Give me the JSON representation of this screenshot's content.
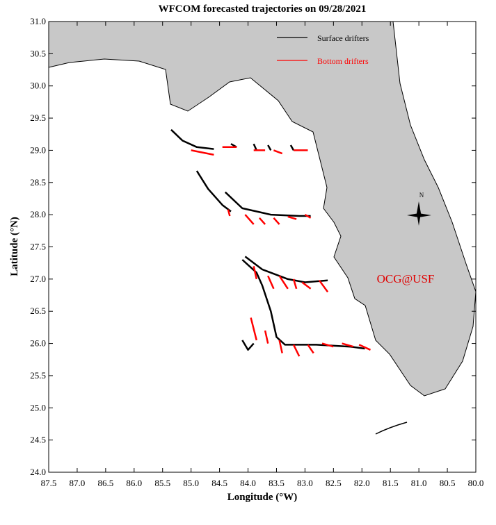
{
  "chart_data": {
    "type": "line",
    "title": "WFCOM forecasted trajectories on 09/28/2021",
    "x_label": "Longitude (°W)",
    "y_label": "Latitude (°N)",
    "annotation": "OCG@USF",
    "annotation_color": "#e00000",
    "compass_label": "N",
    "xlim": [
      87.5,
      80.0
    ],
    "ylim": [
      24.0,
      31.0
    ],
    "xticks": [
      {
        "value": 87.5,
        "label": "87.5"
      },
      {
        "value": 87,
        "label": "87.0"
      },
      {
        "value": 86.5,
        "label": "86.5"
      },
      {
        "value": 86,
        "label": "86.0"
      },
      {
        "value": 85.5,
        "label": "85.5"
      },
      {
        "value": 85,
        "label": "85.0"
      },
      {
        "value": 84.5,
        "label": "84.5"
      },
      {
        "value": 84,
        "label": "84.0"
      },
      {
        "value": 83.5,
        "label": "83.5"
      },
      {
        "value": 83,
        "label": "83.0"
      },
      {
        "value": 82.5,
        "label": "82.5"
      },
      {
        "value": 82,
        "label": "82.0"
      },
      {
        "value": 81.5,
        "label": "81.5"
      },
      {
        "value": 81,
        "label": "81.0"
      },
      {
        "value": 80.5,
        "label": "80.5"
      },
      {
        "value": 80,
        "label": "80.0"
      }
    ],
    "yticks": [
      {
        "value": 24,
        "label": "24.0"
      },
      {
        "value": 24.5,
        "label": "24.5"
      },
      {
        "value": 25,
        "label": "25.0"
      },
      {
        "value": 25.5,
        "label": "25.5"
      },
      {
        "value": 26,
        "label": "26.0"
      },
      {
        "value": 26.5,
        "label": "26.5"
      },
      {
        "value": 27,
        "label": "27.0"
      },
      {
        "value": 27.5,
        "label": "27.5"
      },
      {
        "value": 28,
        "label": "28.0"
      },
      {
        "value": 28.5,
        "label": "28.5"
      },
      {
        "value": 29,
        "label": "29.0"
      },
      {
        "value": 29.5,
        "label": "29.5"
      },
      {
        "value": 30,
        "label": "30.0"
      },
      {
        "value": 30.5,
        "label": "30.5"
      },
      {
        "value": 31,
        "label": "31.0"
      }
    ],
    "series": [
      {
        "name": "Surface drifters",
        "color": "#000000",
        "x": [
          85.35,
          85.15,
          84.9,
          84.6,
          null,
          84.3,
          84.2,
          null,
          83.9,
          83.85,
          null,
          83.65,
          83.6,
          null,
          83.25,
          83.2,
          null,
          84.9,
          84.7,
          84.45,
          84.3,
          null,
          84.4,
          84.1,
          83.6,
          83.1,
          82.9,
          null,
          84.05,
          83.75,
          83.3,
          83.0,
          82.6,
          null,
          84.1,
          83.85,
          83.75,
          83.6,
          83.5,
          83.35,
          82.8,
          82.2,
          81.95,
          null,
          84.1,
          84.0,
          83.9
        ],
        "y": [
          29.32,
          29.15,
          29.05,
          29.02,
          null,
          29.1,
          29.05,
          null,
          29.1,
          29.0,
          null,
          29.08,
          29.0,
          null,
          29.08,
          29.0,
          null,
          28.68,
          28.4,
          28.15,
          28.05,
          null,
          28.35,
          28.1,
          28.0,
          27.98,
          27.98,
          null,
          27.35,
          27.15,
          27.0,
          26.95,
          26.98,
          null,
          27.3,
          27.1,
          26.9,
          26.5,
          26.1,
          25.98,
          25.98,
          25.95,
          25.92,
          null,
          26.05,
          25.9,
          26.0
        ]
      },
      {
        "name": "Bottom drifters",
        "color": "#ff0000",
        "x": [
          85.0,
          84.6,
          null,
          84.45,
          84.2,
          null,
          83.9,
          83.7,
          null,
          83.55,
          83.4,
          null,
          83.2,
          82.95,
          null,
          84.35,
          84.32,
          null,
          84.05,
          83.9,
          null,
          83.8,
          83.7,
          null,
          83.55,
          83.45,
          null,
          83.3,
          83.15,
          null,
          83.0,
          82.9,
          null,
          83.9,
          83.85,
          null,
          83.65,
          83.55,
          null,
          83.45,
          83.3,
          null,
          83.2,
          83.15,
          null,
          83.05,
          82.9,
          null,
          82.75,
          82.6,
          null,
          83.95,
          83.85,
          null,
          83.7,
          83.65,
          null,
          83.45,
          83.4,
          null,
          83.2,
          83.1,
          null,
          82.95,
          82.85,
          null,
          82.7,
          82.5,
          null,
          82.35,
          82.15,
          null,
          82.05,
          81.85
        ],
        "y": [
          29.0,
          28.93,
          null,
          29.05,
          29.05,
          null,
          29.0,
          29.0,
          null,
          29.0,
          28.95,
          null,
          29.0,
          29.0,
          null,
          28.08,
          27.98,
          null,
          28.0,
          27.85,
          null,
          27.95,
          27.85,
          null,
          27.95,
          27.85,
          null,
          27.97,
          27.93,
          null,
          28.0,
          27.95,
          null,
          27.2,
          27.0,
          null,
          27.05,
          26.85,
          null,
          27.05,
          26.85,
          null,
          27.0,
          26.85,
          null,
          26.95,
          26.85,
          null,
          26.98,
          26.8,
          null,
          26.4,
          26.05,
          null,
          26.2,
          26.0,
          null,
          26.05,
          25.85,
          null,
          25.98,
          25.8,
          null,
          25.98,
          25.85,
          null,
          26.0,
          25.95,
          null,
          26.0,
          25.95,
          null,
          25.98,
          25.9
        ]
      }
    ]
  }
}
